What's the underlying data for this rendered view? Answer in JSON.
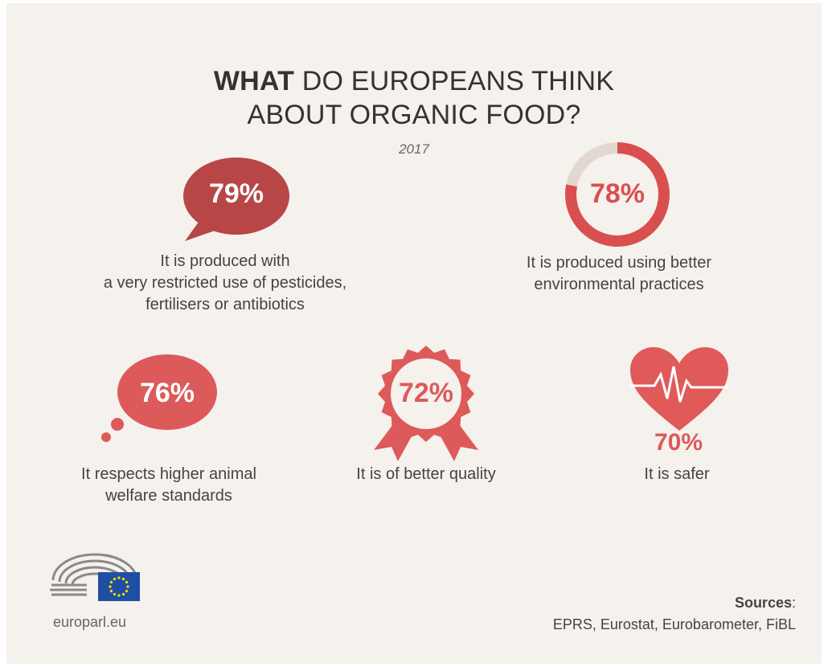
{
  "title": {
    "strong": "WHAT",
    "rest_line1": "DO EUROPEANS THINK",
    "line2": "ABOUT ORGANIC FOOD?"
  },
  "year": "2017",
  "stats": [
    {
      "value": 79,
      "label": "79%",
      "text_lines": [
        "It is produced with",
        "a very restricted use of pesticides,",
        "fertilisers or antibiotics"
      ],
      "icon": "speech-bubble-icon"
    },
    {
      "value": 78,
      "label": "78%",
      "text_lines": [
        "It is produced using better",
        "environmental practices"
      ],
      "icon": "donut-ring-icon"
    },
    {
      "value": 76,
      "label": "76%",
      "text_lines": [
        "It respects higher animal",
        "welfare standards"
      ],
      "icon": "thought-bubble-icon"
    },
    {
      "value": 72,
      "label": "72%",
      "text_lines": [
        "It is of better quality"
      ],
      "icon": "rosette-ribbon-icon"
    },
    {
      "value": 70,
      "label": "70%",
      "text_lines": [
        "It is safer"
      ],
      "icon": "heartbeat-heart-icon"
    }
  ],
  "sources": {
    "heading": "Sources",
    "colon": ":",
    "list": "EPRS, Eurostat, Eurobarometer, FiBL"
  },
  "footer": {
    "site": "europarl.eu",
    "logo": "european-parliament-logo"
  },
  "colors": {
    "dark_red": "#b84646",
    "red": "#dd5a5a",
    "ring_track": "#e2d8d0",
    "background": "#f5f1ed"
  }
}
